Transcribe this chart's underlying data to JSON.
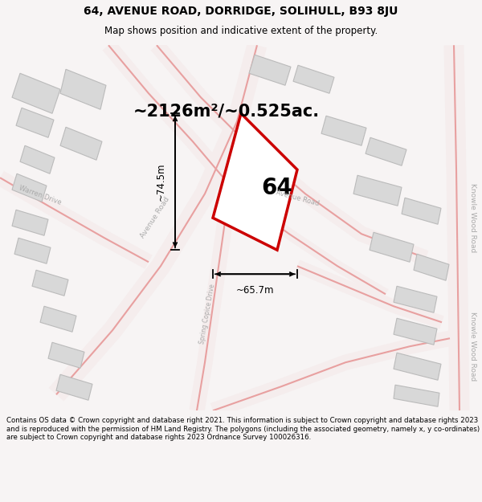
{
  "title_line1": "64, AVENUE ROAD, DORRIDGE, SOLIHULL, B93 8JU",
  "title_line2": "Map shows position and indicative extent of the property.",
  "area_text": "~2126m²/~0.525ac.",
  "label_64": "64",
  "dim_width": "~65.7m",
  "dim_height": "~74.5m",
  "footer": "Contains OS data © Crown copyright and database right 2021. This information is subject to Crown copyright and database rights 2023 and is reproduced with the permission of HM Land Registry. The polygons (including the associated geometry, namely x, y co-ordinates) are subject to Crown copyright and database rights 2023 Ordnance Survey 100026316.",
  "bg_color": "#f7f4f4",
  "map_bg": "#f7f4f4",
  "road_color": "#e8a0a0",
  "road_fill": "#f5eded",
  "building_color": "#d8d8d8",
  "building_edge": "#bbbbbb",
  "highlight_color": "#cc0000",
  "highlight_fill": "#ffffff",
  "label_color": "#aaaaaa",
  "title_size": 10,
  "subtitle_size": 8.5,
  "area_size": 15,
  "footer_size": 6.2
}
